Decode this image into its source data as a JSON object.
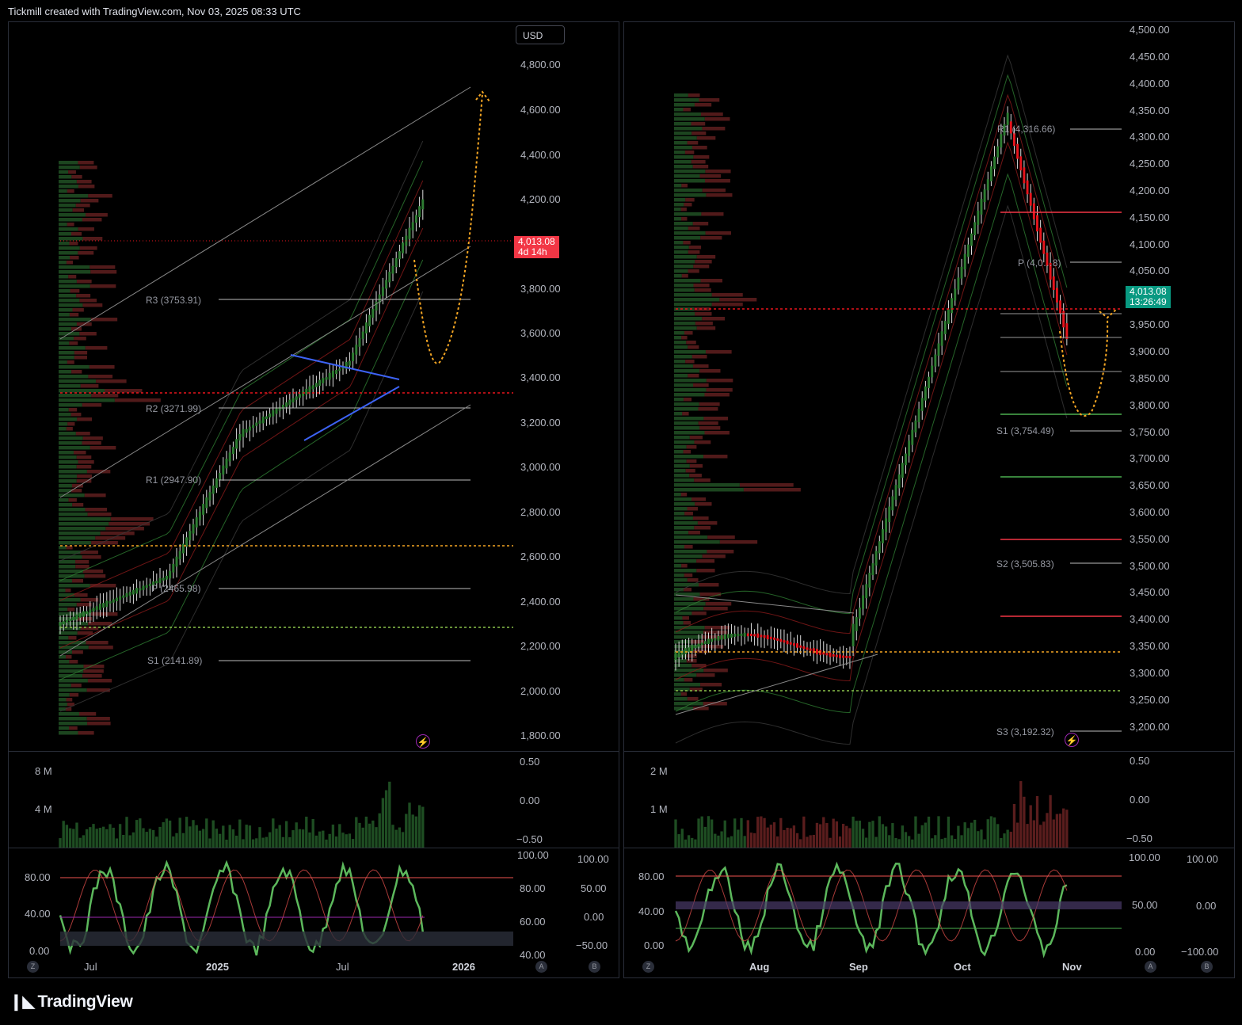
{
  "header": {
    "title": "Tickmill created with TradingView.com, Nov 03, 2025 08:33 UTC"
  },
  "footer": {
    "brand": "TradingView"
  },
  "left": {
    "currency": "USD",
    "price_axis": [
      "4,800.00",
      "4,600.00",
      "4,400.00",
      "4,200.00",
      "3,800.00",
      "3,600.00",
      "3,400.00",
      "3,200.00",
      "3,000.00",
      "2,800.00",
      "2,600.00",
      "2,400.00",
      "2,200.00",
      "2,000.00",
      "1,800.00"
    ],
    "last_price": "4,013.08",
    "countdown": "4d 14h",
    "pivots": {
      "r3": "R3 (3753.91)",
      "r2": "R2 (3271.99)",
      "r1": "R1 (2947.90)",
      "p": "P (2465.98)",
      "s1": "S1 (2141.89)"
    },
    "volume_axis": [
      "8 M",
      "4 M"
    ],
    "volume_right_axis": [
      "0.50",
      "0.00",
      "−0.50"
    ],
    "osc_left_axis": [
      "80.00",
      "40.00",
      "0.00"
    ],
    "osc_right_axis_a": [
      "100.00",
      "80.00",
      "60.00",
      "40.00"
    ],
    "osc_right_axis_b": [
      "100.00",
      "50.00",
      "0.00",
      "−50.00"
    ],
    "time_axis": [
      "Jul",
      "2025",
      "Jul",
      "2026"
    ],
    "btn_z": "Z",
    "btn_a": "A",
    "btn_b": "B",
    "flash_icon": "⚡"
  },
  "right": {
    "price_axis": [
      "4,500.00",
      "4,450.00",
      "4,400.00",
      "4,350.00",
      "4,300.00",
      "4,250.00",
      "4,200.00",
      "4,150.00",
      "4,100.00",
      "4,050.00",
      "3,950.00",
      "3,900.00",
      "3,850.00",
      "3,800.00",
      "3,750.00",
      "3,700.00",
      "3,650.00",
      "3,600.00",
      "3,550.00",
      "3,500.00",
      "3,450.00",
      "3,400.00",
      "3,350.00",
      "3,300.00",
      "3,250.00",
      "3,200.00"
    ],
    "last_price": "4,013.08",
    "countdown": "13:26:49",
    "pivots": {
      "r1": "R1 (4,316.66)",
      "p": "P (4,0…8)",
      "s1": "S1 (3,754.49)",
      "s2": "S2 (3,505.83)",
      "s3": "S3 (3,192.32)"
    },
    "volume_axis": [
      "2 M",
      "1 M"
    ],
    "volume_right_axis": [
      "0.50",
      "0.00",
      "−0.50"
    ],
    "osc_left_axis": [
      "80.00",
      "40.00",
      "0.00"
    ],
    "osc_right_axis_a": [
      "100.00",
      "50.00",
      "0.00"
    ],
    "osc_right_axis_b": [
      "100.00",
      "0.00",
      "−100.00"
    ],
    "time_axis": [
      "Aug",
      "Sep",
      "Oct",
      "Nov"
    ],
    "btn_z": "Z",
    "btn_a": "A",
    "btn_b": "B",
    "flash_icon": "⚡"
  },
  "colors": {
    "up": "#2e7d32",
    "down": "#e8141c",
    "badge_down": "#f23645",
    "badge_up": "#089981",
    "projection": "#f5a623",
    "triangle": "#3d63f5",
    "osc_green": "#5cb85c",
    "osc_red": "#ef5350"
  }
}
